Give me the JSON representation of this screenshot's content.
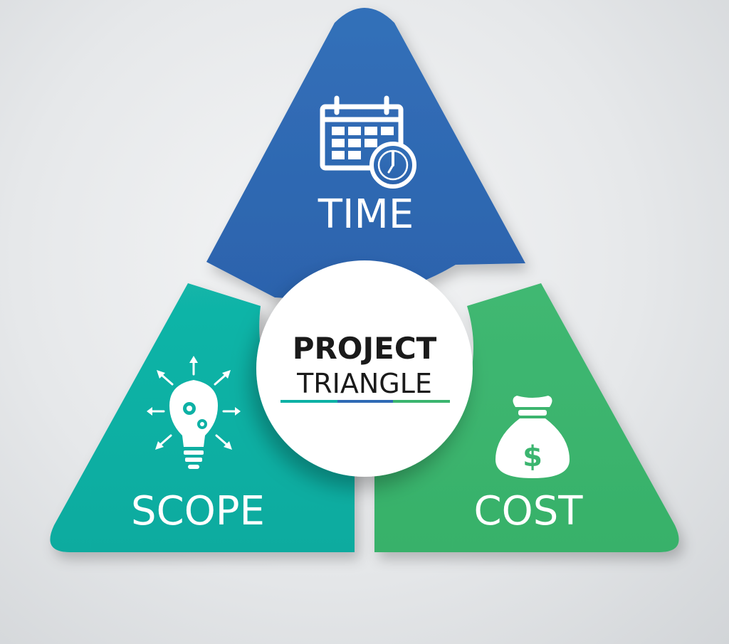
{
  "diagram": {
    "center": {
      "line1": "PROJECT",
      "line2": "TRIANGLE"
    },
    "segments": [
      {
        "id": "time",
        "label": "TIME",
        "icon": "calendar-clock-icon",
        "color": "#2f6ab5"
      },
      {
        "id": "scope",
        "label": "SCOPE",
        "icon": "lightbulb-gears-icon",
        "color": "#0db1a5"
      },
      {
        "id": "cost",
        "label": "COST",
        "icon": "money-bag-icon",
        "color": "#3bb56f"
      }
    ],
    "underline_colors": [
      "#0db1a5",
      "#2f6ab5",
      "#3bb56f"
    ]
  }
}
